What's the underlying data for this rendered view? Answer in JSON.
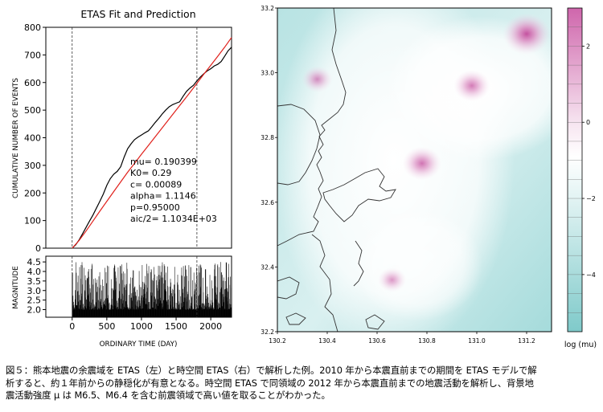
{
  "chart_data": [
    {
      "type": "line",
      "title": "ETAS Fit and Prediction",
      "xlabel": "",
      "ylabel": "CUMULATIVE NUMBER OF EVENTS",
      "xlim": [
        -380,
        2300
      ],
      "ylim": [
        0,
        800
      ],
      "xticks": [
        0,
        500,
        1000,
        1500,
        2000
      ],
      "yticks": [
        0,
        100,
        200,
        300,
        400,
        500,
        600,
        700,
        800
      ],
      "vlines": [
        0,
        1800
      ],
      "series": [
        {
          "color": "#000000",
          "x": [
            0,
            50,
            100,
            150,
            200,
            250,
            300,
            350,
            400,
            450,
            500,
            550,
            600,
            650,
            700,
            750,
            800,
            850,
            900,
            950,
            1000,
            1050,
            1100,
            1150,
            1200,
            1250,
            1300,
            1350,
            1400,
            1450,
            1500,
            1550,
            1600,
            1650,
            1700,
            1750,
            1800,
            1850,
            1900,
            1950,
            2000,
            2050,
            2100,
            2150,
            2200,
            2250,
            2300
          ],
          "y": [
            0,
            12,
            30,
            52,
            75,
            98,
            120,
            145,
            170,
            196,
            228,
            252,
            268,
            278,
            295,
            330,
            360,
            378,
            393,
            402,
            410,
            418,
            425,
            440,
            456,
            470,
            486,
            500,
            512,
            520,
            525,
            530,
            550,
            568,
            580,
            590,
            606,
            620,
            632,
            642,
            650,
            660,
            666,
            676,
            695,
            715,
            728
          ]
        },
        {
          "color": "#e0201b",
          "x": [
            0,
            100,
            200,
            300,
            400,
            500,
            600,
            700,
            800,
            900,
            1000,
            1100,
            1200,
            1300,
            1400,
            1500,
            1600,
            1700,
            1800,
            1900,
            2000,
            2100,
            2200,
            2300
          ],
          "y": [
            0,
            28,
            62,
            98,
            134,
            170,
            205,
            240,
            275,
            307,
            340,
            372,
            404,
            436,
            468,
            500,
            532,
            564,
            597,
            630,
            662,
            695,
            728,
            763
          ]
        }
      ],
      "annotations": [
        "mu= 0.190399",
        "K0=    0.29",
        "c=   0.00089",
        "alpha=  1.1146",
        "p=0.95000",
        "aic/2=  1.1034E+03"
      ]
    },
    {
      "type": "bar",
      "xlabel": "ORDINARY TIME (DAY)",
      "ylabel": "MAGNITUDE",
      "xlim": [
        -380,
        2300
      ],
      "ylim": [
        1.6,
        4.8
      ],
      "yticks": [
        2.0,
        2.5,
        3.0,
        3.5,
        4.0,
        4.5
      ],
      "ytick_labels": [
        "2.0",
        "2.5",
        "3.0",
        "3.5",
        "4.0",
        "4.5"
      ],
      "xticks": [
        0,
        500,
        1000,
        1500,
        2000
      ],
      "xtick_labels": [
        "0",
        "500",
        "1000",
        "1500",
        "2000"
      ],
      "magnitude_range": [
        2.0,
        4.5
      ],
      "num_events": 728
    },
    {
      "type": "heatmap",
      "xlim": [
        130.2,
        131.3
      ],
      "ylim": [
        32.2,
        33.2
      ],
      "xticks": [
        130.2,
        130.4,
        130.6,
        130.8,
        131.0,
        131.2
      ],
      "xtick_labels": [
        "130.2",
        "130.4",
        "130.6",
        "130.8",
        "131.0",
        "131.2"
      ],
      "yticks": [
        32.2,
        32.4,
        32.6,
        32.8,
        33.0,
        33.2
      ],
      "ytick_labels": [
        "32.2",
        "32.4",
        "32.6",
        "32.8",
        "33.0",
        "33.2"
      ],
      "colorbar_label": "log (mu)",
      "colorbar_range": [
        -5.5,
        3.0
      ],
      "colorbar_ticks": [
        2,
        0,
        -2,
        -4
      ],
      "colorbar_tick_labels": [
        "2",
        "0",
        "−2",
        "−4"
      ],
      "high_spots": [
        {
          "lon": 131.2,
          "lat": 33.12,
          "value": 2.4
        },
        {
          "lon": 130.78,
          "lat": 32.72,
          "value": 1.2
        },
        {
          "lon": 130.98,
          "lat": 32.96,
          "value": 0.9
        },
        {
          "lon": 130.36,
          "lat": 32.98,
          "value": 0.1
        },
        {
          "lon": 130.66,
          "lat": 32.36,
          "value": -0.2
        }
      ]
    }
  ],
  "caption": {
    "lines": [
      "図５：熊本地震の余震域を ETAS（左）と時空間 ETAS（右）で解析した例。2010 年から本震直前までの期間を ETAS モデルで解",
      "析すると、約１年前からの静穏化が有意となる。時空間 ETAS で同領域の 2012 年から本震直前までの地震活動を解析し、背景地",
      "震活動強度 μ は M6.5、M6.4 を含む前震領域で高い値を取ることがわかった。"
    ]
  }
}
